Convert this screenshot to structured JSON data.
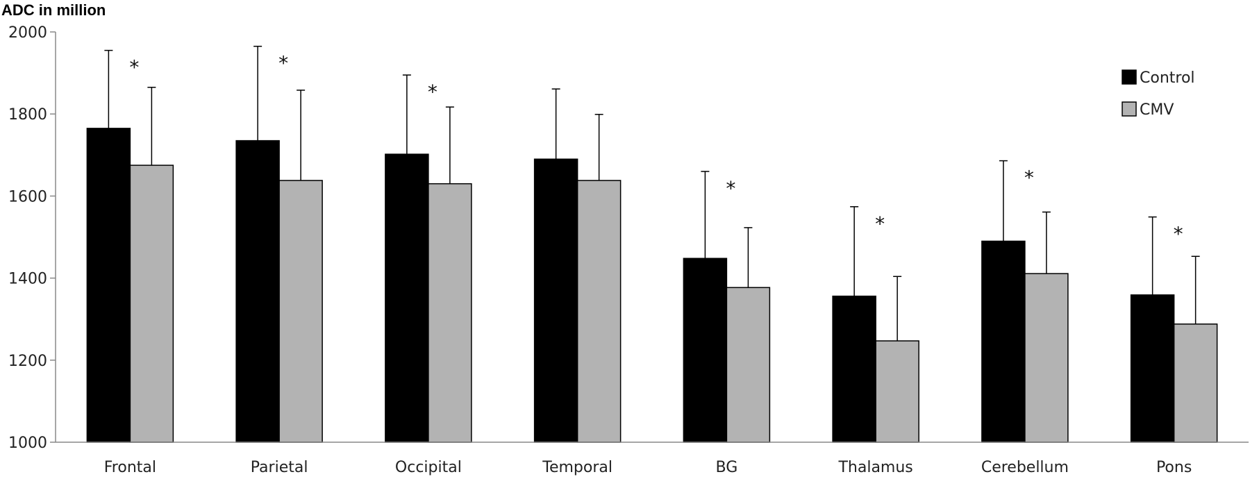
{
  "chart_data": {
    "type": "bar",
    "ylabel": "ADC in million",
    "ylim": [
      1000,
      2000
    ],
    "yticks": [
      "1000",
      "1200",
      "1400",
      "1600",
      "1800",
      "2000"
    ],
    "grid": false,
    "legend_position": "top-right",
    "categories": [
      "Frontal",
      "Parietal",
      "Occipital",
      "Temporal",
      "BG",
      "Thalamus",
      "Cerebellum",
      "Pons"
    ],
    "series": [
      {
        "name": "Control",
        "color": "#000000",
        "values": [
          1765,
          1735,
          1702,
          1690,
          1448,
          1356,
          1490,
          1359
        ],
        "error_upper": [
          190,
          230,
          193,
          171,
          212,
          218,
          196,
          190
        ]
      },
      {
        "name": "CMV",
        "color": "#b3b3b3",
        "values": [
          1675,
          1638,
          1630,
          1638,
          1377,
          1247,
          1411,
          1288
        ],
        "error_upper": [
          190,
          220,
          187,
          161,
          146,
          157,
          150,
          165
        ]
      }
    ],
    "significance": [
      "*",
      "*",
      "*",
      "",
      "*",
      "*",
      "*",
      "*"
    ]
  }
}
